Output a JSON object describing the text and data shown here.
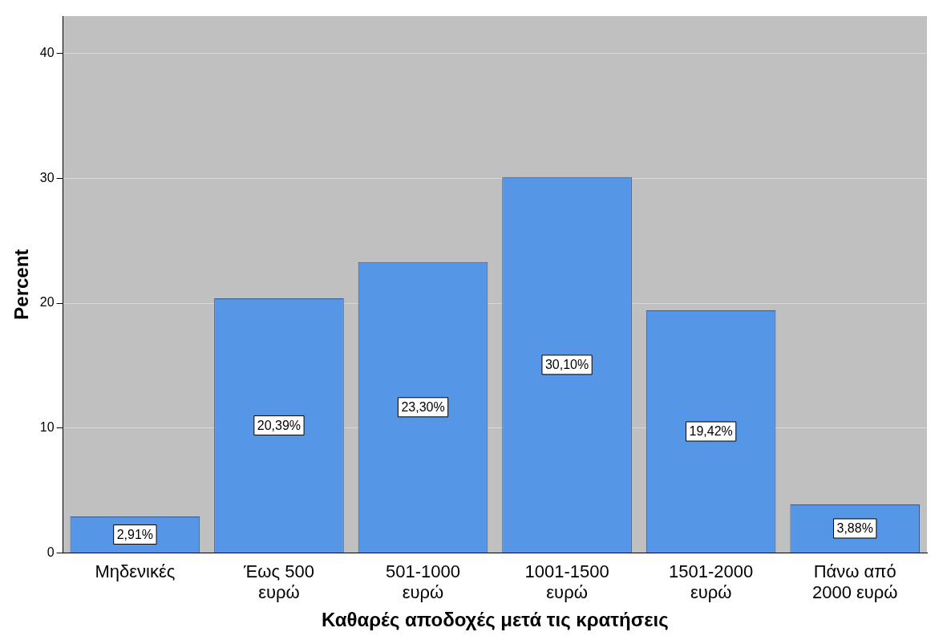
{
  "chart_data": {
    "type": "bar",
    "xlabel": "Καθαρές αποδοχές μετά τις κρατήσεις",
    "ylabel": "Percent",
    "categories": [
      "Μηδενικές",
      "Έως 500 ευρώ",
      "501-1000 ευρώ",
      "1001-1500 ευρώ",
      "1501-2000 ευρώ",
      "Πάνω από 2000 ευρώ"
    ],
    "values": [
      2.91,
      20.39,
      23.3,
      30.1,
      19.42,
      3.88
    ],
    "value_labels": [
      "2,91%",
      "20,39%",
      "23,30%",
      "30,10%",
      "19,42%",
      "3,88%"
    ],
    "color": "#5596e6",
    "ylim": [
      0,
      43
    ],
    "yticks": [
      0,
      10,
      20,
      30,
      40
    ],
    "grid": "y"
  }
}
